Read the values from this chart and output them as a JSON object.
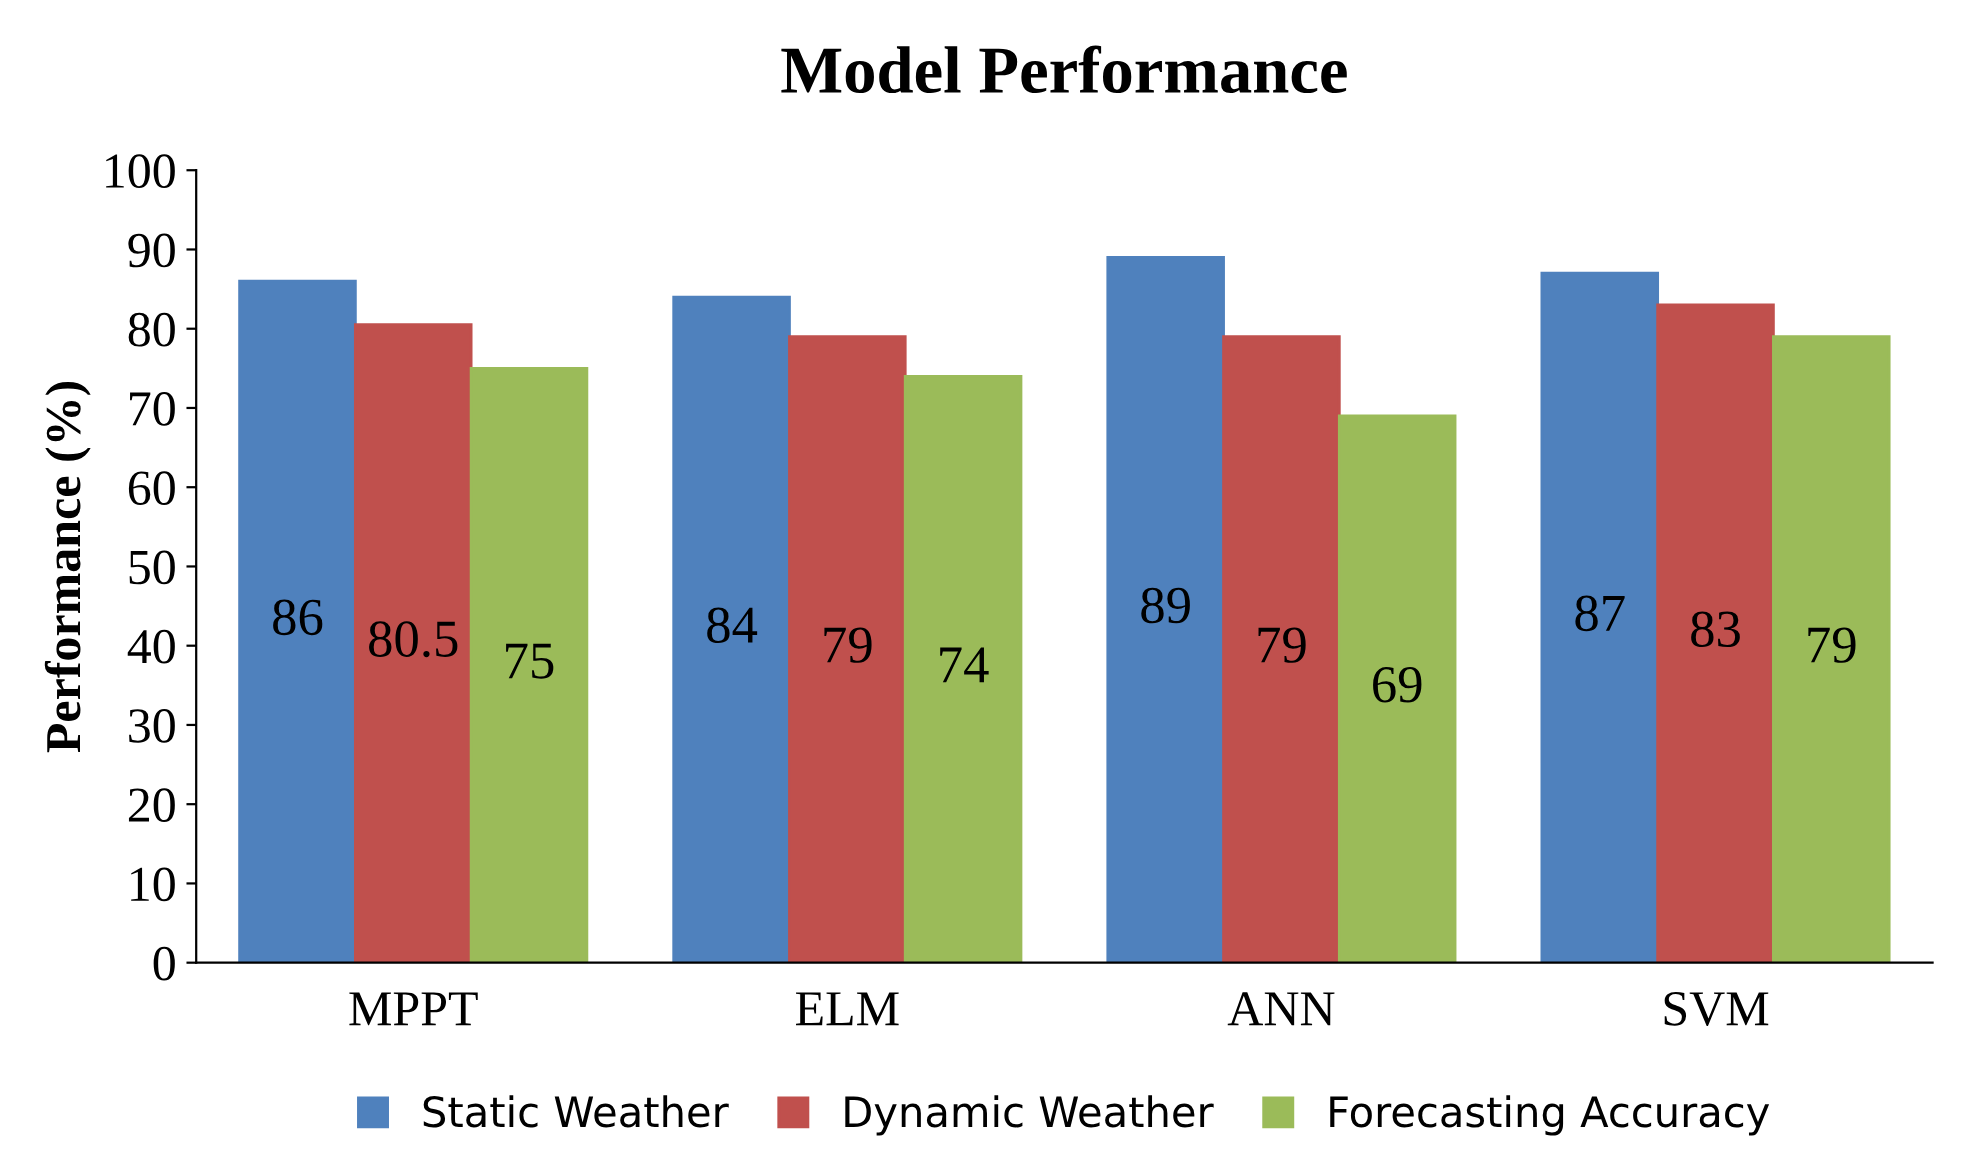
{
  "chart_data": {
    "type": "bar",
    "title": "Model Performance",
    "ylabel": "Performance (%)",
    "categories": [
      "MPPT",
      "ELM",
      "ANN",
      "SVM"
    ],
    "series": [
      {
        "name": "Static Weather",
        "color": "#4f81bd",
        "values": [
          86,
          84,
          89,
          87
        ]
      },
      {
        "name": "Dynamic Weather",
        "color": "#c0504d",
        "values": [
          80.5,
          79,
          79,
          83
        ]
      },
      {
        "name": "Forecasting Accuracy",
        "color": "#9bbb59",
        "values": [
          75,
          74,
          69,
          79
        ]
      }
    ],
    "ylim": [
      0,
      100
    ],
    "yticks": [
      0,
      10,
      20,
      30,
      40,
      50,
      60,
      70,
      80,
      90,
      100
    ],
    "data_labels": true,
    "legend": "bottom",
    "grid": false
  }
}
